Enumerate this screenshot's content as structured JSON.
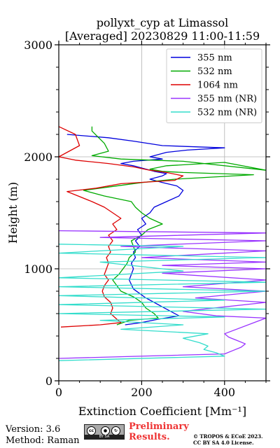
{
  "chart_data": {
    "type": "line",
    "title": "pollyxt_cyp at Limassol",
    "subtitle": "[Averaged] 20230829 11:00-11:59",
    "xlabel": "Extinction Coefficient [Mm⁻¹]",
    "ylabel": "Height (m)",
    "xlim": [
      0,
      500
    ],
    "ylim": [
      0,
      3000
    ],
    "x_ticks": [
      0,
      200,
      400
    ],
    "y_ticks": [
      0,
      1000,
      2000,
      3000
    ],
    "grid": true,
    "legend_position": "top-right",
    "series": [
      {
        "name": "355 nm",
        "color": "#0000dd",
        "points": [
          [
            160,
            500
          ],
          [
            200,
            520
          ],
          [
            240,
            550
          ],
          [
            290,
            580
          ],
          [
            270,
            620
          ],
          [
            250,
            660
          ],
          [
            230,
            700
          ],
          [
            210,
            740
          ],
          [
            195,
            780
          ],
          [
            180,
            820
          ],
          [
            175,
            860
          ],
          [
            170,
            900
          ],
          [
            175,
            950
          ],
          [
            180,
            1000
          ],
          [
            175,
            1050
          ],
          [
            185,
            1100
          ],
          [
            180,
            1150
          ],
          [
            195,
            1200
          ],
          [
            185,
            1250
          ],
          [
            200,
            1300
          ],
          [
            190,
            1350
          ],
          [
            210,
            1400
          ],
          [
            200,
            1450
          ],
          [
            220,
            1500
          ],
          [
            230,
            1550
          ],
          [
            260,
            1600
          ],
          [
            290,
            1650
          ],
          [
            300,
            1700
          ],
          [
            285,
            1740
          ],
          [
            250,
            1770
          ],
          [
            220,
            1800
          ],
          [
            250,
            1830
          ],
          [
            260,
            1850
          ],
          [
            230,
            1870
          ],
          [
            200,
            1900
          ],
          [
            180,
            1920
          ],
          [
            150,
            1940
          ],
          [
            180,
            1960
          ],
          [
            250,
            1980
          ],
          [
            220,
            2000
          ],
          [
            260,
            2040
          ],
          [
            310,
            2060
          ],
          [
            400,
            2080
          ],
          [
            250,
            2100
          ],
          [
            180,
            2140
          ],
          [
            120,
            2170
          ],
          [
            20,
            2200
          ]
        ]
      },
      {
        "name": "532 nm",
        "color": "#00aa00",
        "points": [
          [
            140,
            500
          ],
          [
            170,
            540
          ],
          [
            240,
            560
          ],
          [
            230,
            600
          ],
          [
            210,
            650
          ],
          [
            200,
            700
          ],
          [
            180,
            750
          ],
          [
            150,
            800
          ],
          [
            140,
            850
          ],
          [
            130,
            900
          ],
          [
            145,
            950
          ],
          [
            155,
            1000
          ],
          [
            165,
            1050
          ],
          [
            170,
            1100
          ],
          [
            185,
            1150
          ],
          [
            180,
            1200
          ],
          [
            175,
            1250
          ],
          [
            200,
            1300
          ],
          [
            215,
            1350
          ],
          [
            250,
            1400
          ],
          [
            220,
            1450
          ],
          [
            200,
            1500
          ],
          [
            185,
            1550
          ],
          [
            175,
            1600
          ],
          [
            110,
            1650
          ],
          [
            60,
            1700
          ],
          [
            120,
            1730
          ],
          [
            200,
            1770
          ],
          [
            280,
            1800
          ],
          [
            470,
            1840
          ],
          [
            300,
            1860
          ],
          [
            250,
            1870
          ],
          [
            220,
            1890
          ],
          [
            260,
            1920
          ],
          [
            400,
            1950
          ],
          [
            500,
            1880
          ],
          [
            300,
            1960
          ],
          [
            150,
            1980
          ],
          [
            80,
            2010
          ],
          [
            120,
            2050
          ],
          [
            110,
            2120
          ],
          [
            80,
            2230
          ],
          [
            80,
            2270
          ]
        ]
      },
      {
        "name": "1064 nm",
        "color": "#dd0000",
        "points": [
          [
            5,
            480
          ],
          [
            100,
            500
          ],
          [
            150,
            520
          ],
          [
            140,
            550
          ],
          [
            125,
            600
          ],
          [
            130,
            650
          ],
          [
            125,
            700
          ],
          [
            110,
            750
          ],
          [
            105,
            800
          ],
          [
            110,
            850
          ],
          [
            120,
            900
          ],
          [
            110,
            950
          ],
          [
            115,
            1000
          ],
          [
            120,
            1050
          ],
          [
            115,
            1100
          ],
          [
            125,
            1150
          ],
          [
            120,
            1200
          ],
          [
            130,
            1250
          ],
          [
            120,
            1300
          ],
          [
            140,
            1350
          ],
          [
            130,
            1400
          ],
          [
            150,
            1450
          ],
          [
            130,
            1500
          ],
          [
            110,
            1550
          ],
          [
            80,
            1600
          ],
          [
            20,
            1690
          ],
          [
            90,
            1720
          ],
          [
            150,
            1760
          ],
          [
            280,
            1790
          ],
          [
            300,
            1830
          ],
          [
            260,
            1860
          ],
          [
            220,
            1880
          ],
          [
            180,
            1910
          ],
          [
            120,
            1940
          ],
          [
            40,
            1970
          ],
          [
            0,
            2000
          ],
          [
            50,
            2100
          ],
          [
            40,
            2200
          ],
          [
            0,
            2270
          ]
        ]
      },
      {
        "name": "355 nm (NR)",
        "color": "#9933ff",
        "points": [
          [
            0,
            200
          ],
          [
            400,
            240
          ],
          [
            420,
            270
          ],
          [
            440,
            300
          ],
          [
            450,
            330
          ],
          [
            430,
            360
          ],
          [
            410,
            390
          ],
          [
            400,
            420
          ],
          [
            500,
            560
          ],
          [
            380,
            580
          ],
          [
            340,
            600
          ],
          [
            300,
            620
          ],
          [
            500,
            700
          ],
          [
            330,
            740
          ],
          [
            500,
            800
          ],
          [
            300,
            840
          ],
          [
            500,
            900
          ],
          [
            250,
            960
          ],
          [
            500,
            1000
          ],
          [
            250,
            1030
          ],
          [
            500,
            1060
          ],
          [
            200,
            1100
          ],
          [
            500,
            1160
          ],
          [
            150,
            1200
          ],
          [
            500,
            1250
          ],
          [
            100,
            1280
          ],
          [
            500,
            1320
          ],
          [
            0,
            1340
          ]
        ]
      },
      {
        "name": "532 nm (NR)",
        "color": "#33ddcc",
        "points": [
          [
            0,
            180
          ],
          [
            400,
            220
          ],
          [
            380,
            250
          ],
          [
            350,
            280
          ],
          [
            360,
            310
          ],
          [
            340,
            340
          ],
          [
            300,
            380
          ],
          [
            360,
            420
          ],
          [
            150,
            460
          ],
          [
            300,
            500
          ],
          [
            100,
            540
          ],
          [
            400,
            570
          ],
          [
            0,
            600
          ],
          [
            500,
            640
          ],
          [
            0,
            680
          ],
          [
            400,
            720
          ],
          [
            0,
            760
          ],
          [
            500,
            800
          ],
          [
            0,
            840
          ],
          [
            500,
            880
          ],
          [
            0,
            920
          ],
          [
            300,
            980
          ],
          [
            100,
            1060
          ],
          [
            500,
            1100
          ],
          [
            0,
            1140
          ],
          [
            300,
            1200
          ],
          [
            0,
            1220
          ]
        ]
      }
    ]
  },
  "footer": {
    "version": "Version: 3.6",
    "method": "Method: Raman",
    "preliminary": "Preliminary Results.",
    "copyright_line1": "© TROPOS & ECoE 2023.",
    "copyright_line2": "CC BY SA 4.0 License.",
    "license_badge_text": "BY  SA"
  }
}
